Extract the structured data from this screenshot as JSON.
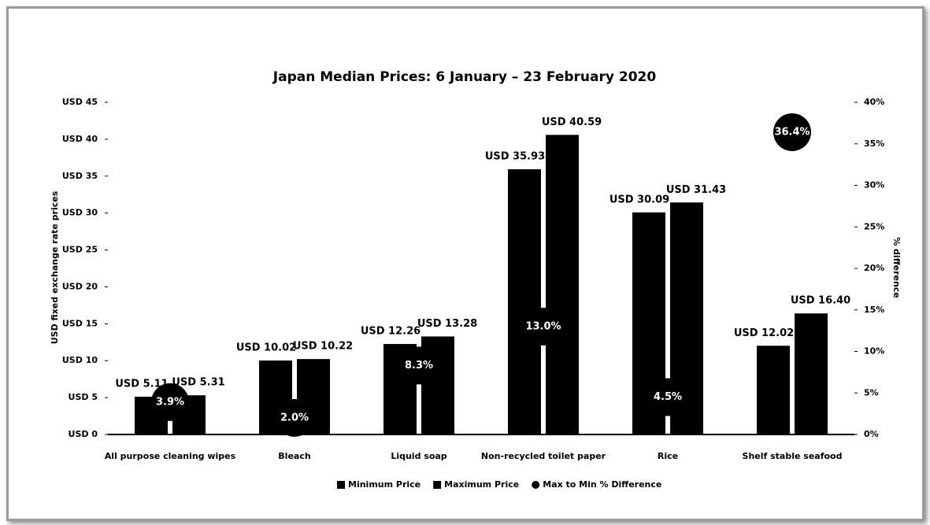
{
  "chart_data": {
    "type": "bar",
    "title": "Japan Median Prices: 6 January – 23 February 2020",
    "y_label": "USD fixed exchange rate prices",
    "y2_label": "% difference",
    "categories": [
      "All purpose cleaning wipes",
      "Bleach",
      "Liquid soap",
      "Non-recycled toilet paper",
      "Rice",
      "Shelf stable seafood"
    ],
    "series": [
      {
        "name": "Minimum Price",
        "color": "#000000",
        "values": [
          5.11,
          10.02,
          12.26,
          35.93,
          30.09,
          12.02
        ],
        "value_labels": [
          "USD 5.11",
          "USD 10.02",
          "USD 12.26",
          "USD 35.93",
          "USD 30.09",
          "USD 12.02"
        ]
      },
      {
        "name": "Maximum Price",
        "color": "#000000",
        "values": [
          5.31,
          10.22,
          13.28,
          40.59,
          31.43,
          16.4
        ],
        "value_labels": [
          "USD 5.31",
          "USD 10.22",
          "USD 13.28",
          "USD 40.59",
          "USD 31.43",
          "USD 16.40"
        ]
      },
      {
        "name": "Max to Min % Difference",
        "color": "#000000",
        "type": "scatter",
        "axis": "y2",
        "values": [
          3.9,
          2,
          8.3,
          13,
          4.5,
          36.4
        ],
        "value_labels": [
          "3.9%",
          "2.0%",
          "8.3%",
          "13.0%",
          "4.5%",
          "36.4%"
        ]
      }
    ],
    "ylim": [
      0,
      45
    ],
    "yticks": [
      {
        "value": 0,
        "label": "USD 0"
      },
      {
        "value": 5,
        "label": "USD 5"
      },
      {
        "value": 10,
        "label": "USD 10"
      },
      {
        "value": 15,
        "label": "USD 15"
      },
      {
        "value": 20,
        "label": "USD 20"
      },
      {
        "value": 25,
        "label": "USD 25"
      },
      {
        "value": 30,
        "label": "USD 30"
      },
      {
        "value": 35,
        "label": "USD 35"
      },
      {
        "value": 40,
        "label": "USD 40"
      },
      {
        "value": 45,
        "label": "USD 45"
      }
    ],
    "y2lim": [
      0,
      40
    ],
    "y2ticks": [
      {
        "value": 0,
        "label": "0%"
      },
      {
        "value": 5,
        "label": "5%"
      },
      {
        "value": 10,
        "label": "10%"
      },
      {
        "value": 15,
        "label": "15%"
      },
      {
        "value": 20,
        "label": "20%"
      },
      {
        "value": 25,
        "label": "25%"
      },
      {
        "value": 30,
        "label": "30%"
      },
      {
        "value": 35,
        "label": "35%"
      },
      {
        "value": 40,
        "label": "40%"
      }
    ],
    "grid": false,
    "legend": "bottom"
  }
}
